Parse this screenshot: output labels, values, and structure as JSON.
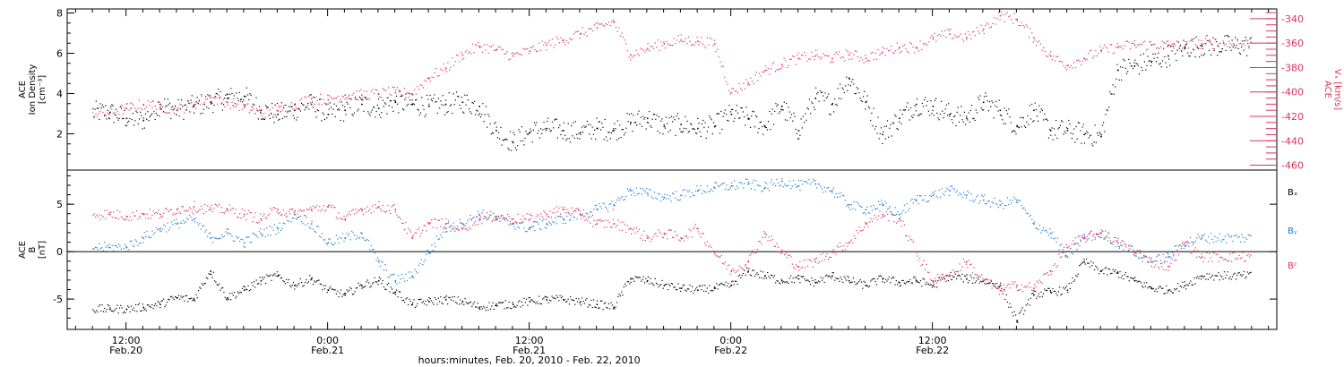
{
  "chart_data": [
    {
      "type": "scatter",
      "panel": "top",
      "ylabel_lines": [
        "ACE",
        "Ion Density",
        "[cm⁻³]"
      ],
      "y2label_lines": [
        "ACE",
        "Vₓ [km/s]"
      ],
      "ylim": [
        0.2,
        8.2
      ],
      "yticks": [
        2,
        4,
        6,
        8
      ],
      "y2lim": [
        -464,
        -332
      ],
      "y2ticks": [
        -340,
        -360,
        -380,
        -400,
        -420,
        -440,
        -460
      ],
      "grid": false,
      "colors": {
        "density": "#000000",
        "vx": "#e0315f",
        "axis_right": "#e0315f"
      },
      "series": [
        {
          "key": "density",
          "color": "#000000",
          "axis": "left",
          "x_hours": [
            0,
            1,
            2,
            3,
            4,
            5,
            6,
            7,
            8,
            9,
            10,
            11,
            12,
            13,
            14,
            15,
            16,
            17,
            18,
            19,
            20,
            21,
            22,
            23,
            24,
            25,
            26,
            27,
            28,
            29,
            30,
            31,
            32,
            33,
            34,
            35,
            36,
            37,
            38,
            39,
            40,
            41,
            42,
            43,
            44,
            45,
            46,
            47,
            48,
            49,
            50,
            51,
            52,
            53,
            54,
            55,
            56,
            57,
            58,
            59,
            60,
            61,
            62,
            63,
            64,
            65
          ],
          "y": [
            3.1,
            2.8,
            2.7,
            3.5,
            3.2,
            3.4,
            3.6,
            3.8,
            3.9,
            3.2,
            3.0,
            3.2,
            3.5,
            3.0,
            3.2,
            3.5,
            3.3,
            3.6,
            3.5,
            3.4,
            3.5,
            3.6,
            3.4,
            2.2,
            1.6,
            2.1,
            2.3,
            2.2,
            2.1,
            2.3,
            2.2,
            2.6,
            2.8,
            2.4,
            2.5,
            2.3,
            2.4,
            3.0,
            2.8,
            2.4,
            3.4,
            2.2,
            3.8,
            3.5,
            4.8,
            3.6,
            2.0,
            2.8,
            3.5,
            3.4,
            3.0,
            2.8,
            3.6,
            3.2,
            2.4,
            3.2,
            2.2,
            2.2,
            2.0,
            1.9,
            5.2,
            5.4,
            5.6,
            5.9,
            6.3,
            6.4
          ]
        },
        {
          "key": "vx",
          "color": "#e0315f",
          "axis": "right",
          "x_hours": [
            0,
            1,
            2,
            3,
            4,
            5,
            6,
            7,
            8,
            9,
            10,
            11,
            12,
            13,
            14,
            15,
            16,
            17,
            18,
            19,
            20,
            21,
            22,
            23,
            24,
            25,
            26,
            27,
            28,
            29,
            30,
            31,
            32,
            33,
            34,
            35,
            36,
            37,
            38,
            39,
            40,
            41,
            42,
            43,
            44,
            45,
            46,
            47,
            48,
            49,
            50,
            51,
            52,
            53,
            54,
            55,
            56,
            57,
            58,
            59,
            60,
            61,
            62,
            63,
            64,
            65
          ],
          "y": [
            -417,
            -413,
            -410,
            -412,
            -414,
            -410,
            -404,
            -408,
            -412,
            -417,
            -415,
            -410,
            -405,
            -406,
            -402,
            -402,
            -401,
            -400,
            -401,
            -388,
            -380,
            -369,
            -362,
            -365,
            -370,
            -366,
            -361,
            -357,
            -352,
            -347,
            -342,
            -369,
            -364,
            -360,
            -357,
            -358,
            -360,
            -400,
            -392,
            -382,
            -377,
            -372,
            -370,
            -372,
            -369,
            -372,
            -367,
            -363,
            -363,
            -356,
            -352,
            -355,
            -348,
            -337,
            -340,
            -355,
            -370,
            -378,
            -372,
            -366,
            -363,
            -361,
            -361,
            -361,
            -362,
            -360
          ]
        }
      ]
    },
    {
      "type": "scatter",
      "panel": "bottom",
      "ylabel_lines": [
        "ACE",
        "B",
        "[nT]"
      ],
      "ylim": [
        -8.2,
        8.6
      ],
      "yticks": [
        5,
        0,
        -5
      ],
      "zero_line": true,
      "grid": false,
      "legend": "right",
      "colors": {
        "bx": "#000000",
        "by": "#1a7ad8",
        "bz": "#e0315f"
      },
      "series": [
        {
          "key": "bx",
          "name": "Bₓ",
          "color": "#000000",
          "x_hours": [
            0,
            1,
            2,
            3,
            4,
            5,
            6,
            7,
            8,
            9,
            10,
            11,
            12,
            13,
            14,
            15,
            16,
            17,
            18,
            19,
            20,
            21,
            22,
            23,
            24,
            25,
            26,
            27,
            28,
            29,
            30,
            31,
            32,
            33,
            34,
            35,
            36,
            37,
            38,
            39,
            40,
            41,
            42,
            43,
            44,
            45,
            46,
            47,
            48,
            49,
            50,
            51,
            52,
            53,
            54,
            55,
            56,
            57,
            58,
            59,
            60,
            61,
            62,
            63,
            64,
            65
          ],
          "y": [
            -6.0,
            -6.0,
            -5.8,
            -5.5,
            -4.8,
            -5.0,
            -2.0,
            -4.8,
            -4.0,
            -3.0,
            -2.5,
            -3.5,
            -2.8,
            -4.0,
            -4.5,
            -3.5,
            -3.0,
            -4.2,
            -5.5,
            -5.2,
            -5.0,
            -5.2,
            -5.8,
            -5.6,
            -5.5,
            -5.2,
            -5.0,
            -5.0,
            -5.2,
            -5.5,
            -5.8,
            -2.8,
            -3.0,
            -3.5,
            -3.8,
            -4.0,
            -3.8,
            -3.5,
            -2.0,
            -2.5,
            -3.0,
            -2.8,
            -3.2,
            -2.5,
            -3.0,
            -3.5,
            -2.8,
            -3.2,
            -3.0,
            -3.5,
            -2.5,
            -2.8,
            -3.0,
            -3.5,
            -7.2,
            -4.5,
            -4.2,
            -4.0,
            -1.0,
            -2.0,
            -2.2,
            -3.0,
            -3.8,
            -4.0,
            -3.5,
            -2.5
          ]
        },
        {
          "key": "by",
          "name": "Bᵧ",
          "color": "#1a7ad8",
          "x_hours": [
            0,
            1,
            2,
            3,
            4,
            5,
            6,
            7,
            8,
            9,
            10,
            11,
            12,
            13,
            14,
            15,
            16,
            17,
            18,
            19,
            20,
            21,
            22,
            23,
            24,
            25,
            26,
            27,
            28,
            29,
            30,
            31,
            32,
            33,
            34,
            35,
            36,
            37,
            38,
            39,
            40,
            41,
            42,
            43,
            44,
            45,
            46,
            47,
            48,
            49,
            50,
            51,
            52,
            53,
            54,
            55,
            56,
            57,
            58,
            59,
            60,
            61,
            62,
            63,
            64,
            65
          ],
          "y": [
            0.5,
            0.5,
            1.5,
            2.5,
            3.0,
            3.5,
            1.5,
            2.0,
            1.0,
            2.0,
            2.5,
            4.0,
            3.0,
            1.0,
            1.5,
            2.0,
            -1.0,
            -3.0,
            -2.5,
            0.0,
            2.5,
            3.0,
            4.0,
            3.5,
            3.0,
            2.5,
            3.0,
            3.5,
            4.0,
            4.5,
            5.0,
            6.5,
            6.2,
            5.8,
            6.0,
            6.5,
            6.8,
            7.0,
            7.2,
            6.8,
            7.5,
            7.0,
            7.2,
            6.5,
            5.0,
            4.5,
            5.0,
            4.0,
            5.5,
            6.0,
            6.5,
            6.0,
            5.5,
            5.0,
            5.5,
            3.0,
            2.0,
            -0.5,
            1.5,
            2.0,
            1.0,
            0.0,
            -1.0,
            -0.5,
            1.0,
            1.5
          ]
        },
        {
          "key": "bz",
          "name": "Bᶻ",
          "color": "#e0315f",
          "x_hours": [
            0,
            1,
            2,
            3,
            4,
            5,
            6,
            7,
            8,
            9,
            10,
            11,
            12,
            13,
            14,
            15,
            16,
            17,
            18,
            19,
            20,
            21,
            22,
            23,
            24,
            25,
            26,
            27,
            28,
            29,
            30,
            31,
            32,
            33,
            34,
            35,
            36,
            37,
            38,
            39,
            40,
            41,
            42,
            43,
            44,
            45,
            46,
            47,
            48,
            49,
            50,
            51,
            52,
            53,
            54,
            55,
            56,
            57,
            58,
            59,
            60,
            61,
            62,
            63,
            64,
            65
          ],
          "y": [
            4.0,
            3.8,
            4.0,
            4.0,
            4.5,
            4.8,
            4.5,
            4.5,
            4.0,
            3.5,
            4.5,
            4.0,
            4.5,
            4.8,
            3.5,
            4.5,
            4.8,
            4.5,
            1.5,
            3.0,
            3.0,
            2.5,
            3.5,
            3.8,
            3.5,
            3.5,
            4.0,
            4.5,
            4.0,
            3.0,
            3.0,
            2.5,
            1.5,
            2.0,
            1.5,
            2.5,
            0.0,
            -2.0,
            -1.0,
            2.0,
            0.0,
            -1.5,
            -1.0,
            0.0,
            1.0,
            3.0,
            4.0,
            3.5,
            0.0,
            -3.0,
            -2.5,
            -1.0,
            -3.0,
            -4.0,
            -3.5,
            -3.8,
            -2.0,
            0.5,
            1.5,
            2.0,
            1.0,
            0.0,
            -1.0,
            -1.5,
            1.0,
            -0.5
          ]
        }
      ]
    }
  ],
  "x_axis": {
    "xlim_hours": [
      -2.5,
      69.5
    ],
    "labeled_ticks": [
      {
        "hours": 1,
        "time": "12:00",
        "date": "Feb.20"
      },
      {
        "hours": 13,
        "time": "0:00",
        "date": "Feb.21"
      },
      {
        "hours": 25,
        "time": "12:00",
        "date": "Feb.21"
      },
      {
        "hours": 37,
        "time": "0:00",
        "date": "Feb.22"
      },
      {
        "hours": 49,
        "time": "12:00",
        "date": "Feb.22"
      }
    ],
    "xlabel": "hours:minutes, Feb. 20, 2010 - Feb. 22, 2010"
  }
}
